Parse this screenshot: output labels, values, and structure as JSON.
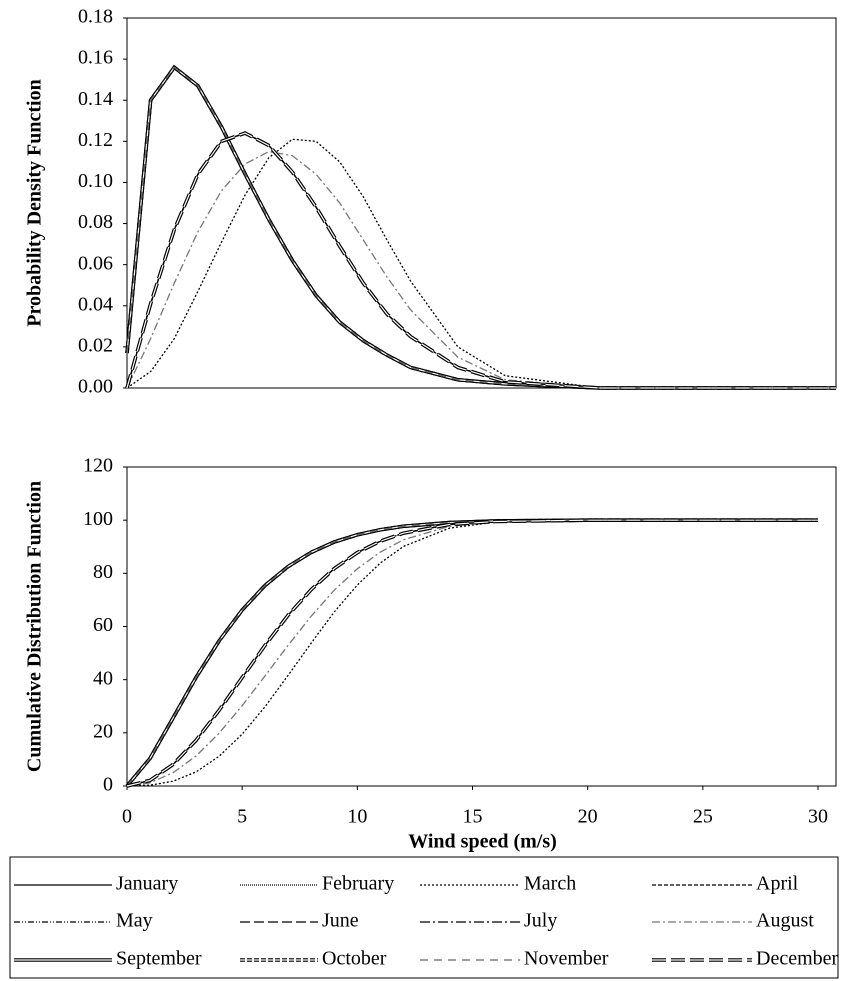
{
  "chart_data": [
    {
      "type": "line",
      "y_label": "Probability Density Function",
      "x": [
        0,
        1,
        2,
        3,
        4,
        5,
        6,
        7,
        8,
        9,
        10,
        11,
        12,
        14,
        16,
        20,
        30
      ],
      "xlim": [
        0,
        30
      ],
      "ylim": [
        0,
        0.18
      ],
      "yticks": [
        {
          "value": 0,
          "label": "0.00"
        },
        {
          "value": 0.02,
          "label": "0.02"
        },
        {
          "value": 0.04,
          "label": "0.04"
        },
        {
          "value": 0.06,
          "label": "0.06"
        },
        {
          "value": 0.08,
          "label": "0.08"
        },
        {
          "value": 0.1,
          "label": "0.10"
        },
        {
          "value": 0.12,
          "label": "0.12"
        },
        {
          "value": 0.14,
          "label": "0.14"
        },
        {
          "value": 0.16,
          "label": "0.16"
        },
        {
          "value": 0.18,
          "label": "0.18"
        }
      ],
      "series": [
        {
          "color": "#000000",
          "dash": "none",
          "double": false,
          "values": [
            0.017,
            0.14,
            0.156,
            0.147,
            0.127,
            0.104,
            0.082,
            0.062,
            0.045,
            0.032,
            0.023,
            0.016,
            0.01,
            0.004,
            0.002,
            0,
            0
          ]
        },
        {
          "color": "#000000",
          "dash": "1 1",
          "double": false,
          "values": [
            0,
            0.041,
            0.077,
            0.104,
            0.12,
            0.124,
            0.118,
            0.105,
            0.088,
            0.069,
            0.051,
            0.036,
            0.025,
            0.01,
            0.003,
            0,
            0
          ]
        },
        {
          "color": "#000000",
          "dash": "2 2",
          "double": false,
          "values": [
            0,
            0.008,
            0.024,
            0.047,
            0.071,
            0.094,
            0.112,
            0.121,
            0.12,
            0.11,
            0.093,
            0.072,
            0.052,
            0.02,
            0.006,
            0,
            0
          ]
        },
        {
          "color": "#000000",
          "dash": "4 2",
          "double": false,
          "values": [
            0,
            0.041,
            0.077,
            0.104,
            0.12,
            0.124,
            0.118,
            0.105,
            0.088,
            0.069,
            0.051,
            0.036,
            0.025,
            0.01,
            0.003,
            0,
            0
          ]
        },
        {
          "color": "#000000",
          "dash": "6 2 1 2 1 2",
          "double": false,
          "values": [
            0,
            0.041,
            0.077,
            0.104,
            0.12,
            0.124,
            0.118,
            0.105,
            0.088,
            0.069,
            0.051,
            0.036,
            0.025,
            0.01,
            0.003,
            0,
            0
          ]
        },
        {
          "color": "#000000",
          "dash": "10 4",
          "double": false,
          "values": [
            0,
            0.041,
            0.077,
            0.104,
            0.12,
            0.124,
            0.118,
            0.105,
            0.088,
            0.069,
            0.051,
            0.036,
            0.025,
            0.01,
            0.003,
            0,
            0
          ]
        },
        {
          "color": "#000000",
          "dash": "10 3 2 3",
          "double": false,
          "values": [
            0,
            0.041,
            0.077,
            0.104,
            0.12,
            0.124,
            0.118,
            0.105,
            0.088,
            0.069,
            0.051,
            0.036,
            0.025,
            0.01,
            0.003,
            0,
            0
          ]
        },
        {
          "color": "#777777",
          "dash": "8 3 2 3",
          "double": false,
          "values": [
            0,
            0.024,
            0.051,
            0.076,
            0.096,
            0.109,
            0.115,
            0.113,
            0.104,
            0.09,
            0.072,
            0.054,
            0.038,
            0.015,
            0.004,
            0,
            0
          ]
        },
        {
          "color": "#000000",
          "dash": "none",
          "double": true,
          "values": [
            0.017,
            0.14,
            0.156,
            0.147,
            0.127,
            0.104,
            0.082,
            0.062,
            0.045,
            0.032,
            0.023,
            0.016,
            0.01,
            0.004,
            0.002,
            0,
            0
          ]
        },
        {
          "color": "#000000",
          "dash": "5 2",
          "double": true,
          "values": [
            0.017,
            0.14,
            0.156,
            0.147,
            0.127,
            0.104,
            0.082,
            0.062,
            0.045,
            0.032,
            0.023,
            0.016,
            0.01,
            0.004,
            0.002,
            0,
            0
          ]
        },
        {
          "color": "#666666",
          "dash": "8 6",
          "double": false,
          "values": [
            0.017,
            0.14,
            0.156,
            0.147,
            0.127,
            0.104,
            0.082,
            0.062,
            0.045,
            0.032,
            0.023,
            0.016,
            0.01,
            0.004,
            0.002,
            0,
            0
          ]
        },
        {
          "color": "#000000",
          "dash": "14 5",
          "double": true,
          "values": [
            0,
            0.041,
            0.077,
            0.104,
            0.12,
            0.124,
            0.118,
            0.105,
            0.088,
            0.069,
            0.051,
            0.036,
            0.025,
            0.01,
            0.003,
            0,
            0
          ]
        }
      ]
    },
    {
      "type": "line",
      "x_label": "Wind speed (m/s)",
      "y_label": "Cumulative Distribution Function",
      "x": [
        0,
        1,
        2,
        3,
        4,
        5,
        6,
        7,
        8,
        9,
        10,
        11,
        12,
        14,
        16,
        20,
        30
      ],
      "xlim": [
        0,
        30
      ],
      "ylim": [
        0,
        120
      ],
      "xticks": [
        0,
        5,
        10,
        15,
        20,
        25,
        30
      ],
      "yticks": [
        0,
        20,
        40,
        60,
        80,
        100,
        120
      ],
      "series": [
        {
          "name": "January",
          "color": "#000000",
          "dash": "none",
          "double": false,
          "values": [
            0,
            10.4,
            25.6,
            40.9,
            54.6,
            66.2,
            75.5,
            82.6,
            87.9,
            91.8,
            94.5,
            96.4,
            97.7,
            99.1,
            99.7,
            100,
            100
          ]
        },
        {
          "name": "February",
          "color": "#000000",
          "dash": "1 1",
          "double": false,
          "values": [
            0,
            2.1,
            8.1,
            17.2,
            28.5,
            40.8,
            53.0,
            64.3,
            73.9,
            81.8,
            87.8,
            92.1,
            95.1,
            98.4,
            99.5,
            100,
            100
          ]
        },
        {
          "name": "March",
          "color": "#000000",
          "dash": "2 2",
          "double": false,
          "values": [
            0,
            0.3,
            1.8,
            5.3,
            11.2,
            19.5,
            29.9,
            41.7,
            53.8,
            65.5,
            75.6,
            83.9,
            90.1,
            97.0,
            99.3,
            100,
            100
          ]
        },
        {
          "name": "April",
          "color": "#000000",
          "dash": "4 2",
          "double": false,
          "values": [
            0,
            2.1,
            8.1,
            17.2,
            28.5,
            40.8,
            53.0,
            64.3,
            73.9,
            81.8,
            87.8,
            92.1,
            95.1,
            98.4,
            99.5,
            100,
            100
          ]
        },
        {
          "name": "May",
          "color": "#000000",
          "dash": "6 2 1 2 1 2",
          "double": false,
          "values": [
            0,
            2.1,
            8.1,
            17.2,
            28.5,
            40.8,
            53.0,
            64.3,
            73.9,
            81.8,
            87.8,
            92.1,
            95.1,
            98.4,
            99.5,
            100,
            100
          ]
        },
        {
          "name": "June",
          "color": "#000000",
          "dash": "10 4",
          "double": false,
          "values": [
            0,
            2.1,
            8.1,
            17.2,
            28.5,
            40.8,
            53.0,
            64.3,
            73.9,
            81.8,
            87.8,
            92.1,
            95.1,
            98.4,
            99.5,
            100,
            100
          ]
        },
        {
          "name": "July",
          "color": "#000000",
          "dash": "10 3 2 3",
          "double": false,
          "values": [
            0,
            2.1,
            8.1,
            17.2,
            28.5,
            40.8,
            53.0,
            64.3,
            73.9,
            81.8,
            87.8,
            92.1,
            95.1,
            98.4,
            99.5,
            100,
            100
          ]
        },
        {
          "name": "August",
          "color": "#777777",
          "dash": "8 3 2 3",
          "double": false,
          "values": [
            0,
            1.2,
            5.0,
            11.3,
            19.9,
            30.2,
            41.5,
            53.0,
            63.9,
            73.7,
            81.7,
            88.0,
            92.6,
            97.7,
            99.4,
            100,
            100
          ]
        },
        {
          "name": "September",
          "color": "#000000",
          "dash": "none",
          "double": true,
          "values": [
            0,
            10.4,
            25.6,
            40.9,
            54.6,
            66.2,
            75.5,
            82.6,
            87.9,
            91.8,
            94.5,
            96.4,
            97.7,
            99.1,
            99.7,
            100,
            100
          ]
        },
        {
          "name": "October",
          "color": "#000000",
          "dash": "5 2",
          "double": true,
          "values": [
            0,
            10.4,
            25.6,
            40.9,
            54.6,
            66.2,
            75.5,
            82.6,
            87.9,
            91.8,
            94.5,
            96.4,
            97.7,
            99.1,
            99.7,
            100,
            100
          ]
        },
        {
          "name": "November",
          "color": "#666666",
          "dash": "8 6",
          "double": false,
          "values": [
            0,
            10.4,
            25.6,
            40.9,
            54.6,
            66.2,
            75.5,
            82.6,
            87.9,
            91.8,
            94.5,
            96.4,
            97.7,
            99.1,
            99.7,
            100,
            100
          ]
        },
        {
          "name": "December",
          "color": "#000000",
          "dash": "14 5",
          "double": true,
          "values": [
            0,
            2.1,
            8.1,
            17.2,
            28.5,
            40.8,
            53.0,
            64.3,
            73.9,
            81.8,
            87.8,
            92.1,
            95.1,
            98.4,
            99.5,
            100,
            100
          ]
        }
      ]
    }
  ]
}
